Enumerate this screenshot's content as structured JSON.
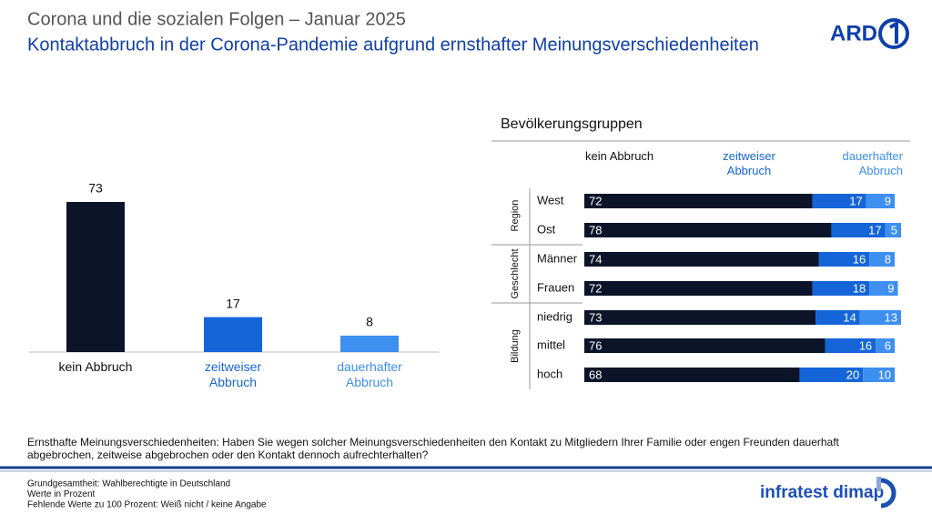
{
  "header": {
    "title": "Corona und die sozialen Folgen – Januar 2025",
    "subtitle": "Kontaktabbruch in der Corona-Pandemie aufgrund ernsthafter Meinungsverschiedenheiten",
    "logo": "ARD"
  },
  "chart_data": [
    {
      "type": "bar",
      "categories": [
        "kein Abbruch",
        "zeitweiser Abbruch",
        "dauerhafter Abbruch"
      ],
      "values": [
        73,
        17,
        8
      ],
      "colors": [
        "#0b1428",
        "#1565d8",
        "#3d8ff0"
      ]
    },
    {
      "type": "stacked-bar-horizontal",
      "title": "Bevölkerungsgruppen",
      "groups": [
        {
          "name": "Region",
          "categories": [
            "West",
            "Ost"
          ]
        },
        {
          "name": "Geschlecht",
          "categories": [
            "Männer",
            "Frauen"
          ]
        },
        {
          "name": "Bildung",
          "categories": [
            "niedrig",
            "mittel",
            "hoch"
          ]
        }
      ],
      "series": [
        {
          "name": "kein Abbruch",
          "color": "#0b1428",
          "values": [
            72,
            78,
            74,
            72,
            73,
            76,
            68
          ]
        },
        {
          "name": "zeitweiser Abbruch",
          "color": "#1565d8",
          "values": [
            17,
            17,
            16,
            18,
            14,
            16,
            20
          ]
        },
        {
          "name": "dauerhafter Abbruch",
          "color": "#3d8ff0",
          "values": [
            9,
            5,
            8,
            9,
            13,
            6,
            10
          ]
        }
      ]
    }
  ],
  "question": "Ernsthafte Meinungsverschiedenheiten: Haben Sie wegen solcher Meinungsverschiedenheiten den Kontakt zu Mitgliedern Ihrer Familie oder engen Freunden dauerhaft abgebrochen, zeitweise abgebrochen oder den Kontakt dennoch aufrechterhalten?",
  "footnotes": [
    "Grundgesamtheit: Wahlberechtigte in Deutschland",
    "Werte in Prozent",
    "Fehlende Werte zu 100 Prozent: Weiß nicht / keine Angabe"
  ],
  "footer_logo": "infratest dimap"
}
